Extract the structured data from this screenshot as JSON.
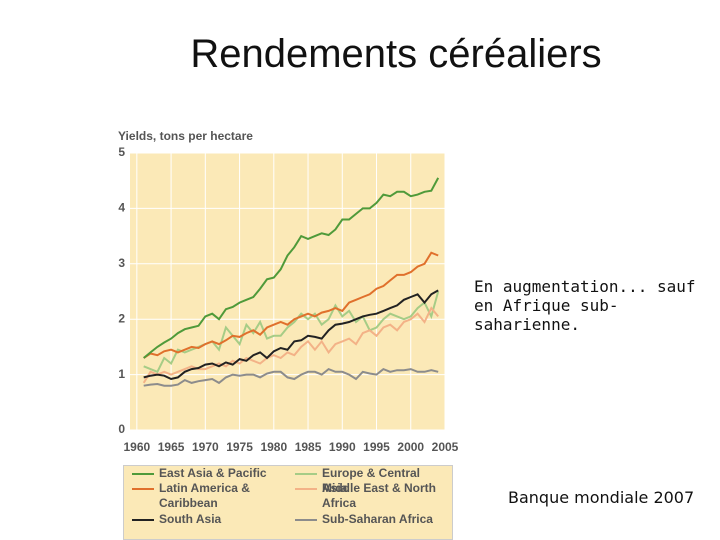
{
  "slide": {
    "title": "Rendements céréaliers",
    "note": "En augmentation... sauf en Afrique sub-saharienne.",
    "source": "Banque mondiale 2007"
  },
  "chart_data": {
    "type": "line",
    "y_label": "Yields, tons per hectare",
    "x": [
      1961,
      1962,
      1963,
      1964,
      1965,
      1966,
      1967,
      1968,
      1969,
      1970,
      1971,
      1972,
      1973,
      1974,
      1975,
      1976,
      1977,
      1978,
      1979,
      1980,
      1981,
      1982,
      1983,
      1984,
      1985,
      1986,
      1987,
      1988,
      1989,
      1990,
      1991,
      1992,
      1993,
      1994,
      1995,
      1996,
      1997,
      1998,
      1999,
      2000,
      2001,
      2002,
      2003,
      2004
    ],
    "xlim": [
      1959,
      2005
    ],
    "xticks": [
      1960,
      1965,
      1970,
      1975,
      1980,
      1985,
      1990,
      1995,
      2000,
      2005
    ],
    "ylim": [
      0,
      5
    ],
    "yticks": [
      0,
      1,
      2,
      3,
      4,
      5
    ],
    "grid": true,
    "series": [
      {
        "name": "East Asia & Pacific",
        "color": "#4f9a3a",
        "values": [
          1.3,
          1.4,
          1.5,
          1.58,
          1.65,
          1.75,
          1.82,
          1.85,
          1.88,
          2.05,
          2.1,
          2.0,
          2.18,
          2.22,
          2.3,
          2.35,
          2.4,
          2.55,
          2.72,
          2.75,
          2.9,
          3.15,
          3.3,
          3.5,
          3.45,
          3.5,
          3.55,
          3.52,
          3.62,
          3.8,
          3.8,
          3.9,
          4.0,
          4.0,
          4.1,
          4.25,
          4.22,
          4.3,
          4.3,
          4.22,
          4.25,
          4.3,
          4.32,
          4.55
        ]
      },
      {
        "name": "Latin America & Caribbean",
        "color": "#e0702c",
        "values": [
          1.3,
          1.38,
          1.35,
          1.42,
          1.45,
          1.4,
          1.45,
          1.5,
          1.48,
          1.55,
          1.6,
          1.55,
          1.62,
          1.7,
          1.68,
          1.75,
          1.8,
          1.72,
          1.85,
          1.9,
          1.95,
          1.9,
          2.0,
          2.05,
          2.1,
          2.05,
          2.12,
          2.15,
          2.2,
          2.15,
          2.3,
          2.35,
          2.4,
          2.45,
          2.55,
          2.6,
          2.7,
          2.8,
          2.8,
          2.85,
          2.95,
          3.0,
          3.2,
          3.15
        ]
      },
      {
        "name": "South Asia",
        "color": "#222222",
        "values": [
          0.95,
          0.98,
          1.0,
          0.98,
          0.92,
          0.95,
          1.05,
          1.1,
          1.12,
          1.18,
          1.2,
          1.15,
          1.22,
          1.18,
          1.28,
          1.25,
          1.35,
          1.4,
          1.3,
          1.42,
          1.48,
          1.45,
          1.6,
          1.62,
          1.7,
          1.68,
          1.65,
          1.8,
          1.9,
          1.92,
          1.95,
          2.0,
          2.05,
          2.08,
          2.1,
          2.15,
          2.2,
          2.25,
          2.35,
          2.4,
          2.45,
          2.3,
          2.45,
          2.52
        ]
      },
      {
        "name": "Europe & Central Asia",
        "color": "#a6cc86",
        "values": [
          1.15,
          1.1,
          1.05,
          1.3,
          1.2,
          1.45,
          1.4,
          1.45,
          1.5,
          1.55,
          1.6,
          1.45,
          1.85,
          1.7,
          1.55,
          1.9,
          1.75,
          1.95,
          1.65,
          1.7,
          1.7,
          1.85,
          1.95,
          2.1,
          2.0,
          2.1,
          1.9,
          2.0,
          2.25,
          2.05,
          2.15,
          1.95,
          2.05,
          1.8,
          1.85,
          2.0,
          2.1,
          2.05,
          2.0,
          2.05,
          2.2,
          2.3,
          2.05,
          2.5
        ]
      },
      {
        "name": "Middle East & North Africa",
        "color": "#f3b287",
        "values": [
          0.85,
          1.05,
          1.0,
          1.05,
          1.0,
          1.05,
          1.1,
          1.15,
          1.1,
          1.1,
          1.15,
          1.2,
          1.15,
          1.25,
          1.2,
          1.3,
          1.25,
          1.2,
          1.3,
          1.35,
          1.3,
          1.4,
          1.35,
          1.5,
          1.6,
          1.45,
          1.6,
          1.4,
          1.55,
          1.6,
          1.65,
          1.55,
          1.75,
          1.8,
          1.7,
          1.85,
          1.9,
          1.8,
          1.95,
          2.0,
          2.1,
          1.95,
          2.2,
          2.05
        ]
      },
      {
        "name": "Sub-Saharan Africa",
        "color": "#8c8c8c",
        "values": [
          0.8,
          0.82,
          0.83,
          0.8,
          0.8,
          0.82,
          0.9,
          0.85,
          0.88,
          0.9,
          0.92,
          0.85,
          0.95,
          1.0,
          0.98,
          1.0,
          1.0,
          0.95,
          1.02,
          1.05,
          1.05,
          0.95,
          0.92,
          1.0,
          1.05,
          1.05,
          1.0,
          1.1,
          1.05,
          1.05,
          1.0,
          0.92,
          1.05,
          1.02,
          1.0,
          1.1,
          1.05,
          1.08,
          1.08,
          1.1,
          1.05,
          1.05,
          1.08,
          1.05
        ]
      }
    ]
  }
}
